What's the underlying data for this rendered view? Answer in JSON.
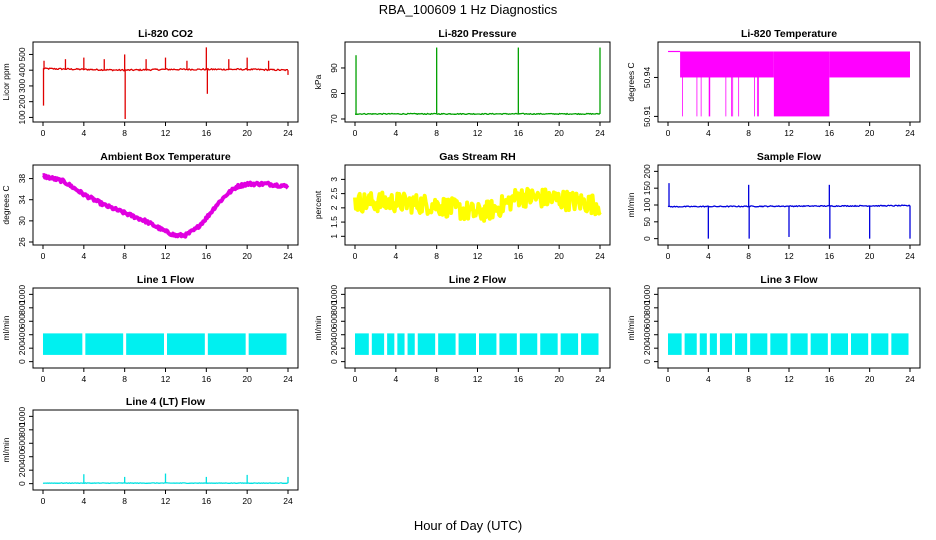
{
  "figure": {
    "title": "RBA_100609  1 Hz Diagnostics",
    "xlabel": "Hour of Day (UTC)"
  },
  "chart_data": [
    {
      "type": "line",
      "title": "Li-820 CO2",
      "ylabel": "Licor ppm",
      "color": "#e00000",
      "xlim": [
        0,
        24
      ],
      "xticks": [
        0,
        4,
        8,
        12,
        16,
        20,
        24
      ],
      "ylim": [
        90,
        560
      ],
      "yticks": [
        100,
        200,
        300,
        400,
        500
      ],
      "baseline": [
        [
          0,
          410
        ],
        [
          4,
          405
        ],
        [
          8,
          400
        ],
        [
          12,
          405
        ],
        [
          16,
          405
        ],
        [
          20,
          405
        ],
        [
          24,
          400
        ]
      ],
      "noise": 10,
      "spikes": [
        [
          0.05,
          175
        ],
        [
          0.1,
          460
        ],
        [
          2.2,
          470
        ],
        [
          4.0,
          480
        ],
        [
          6.0,
          470
        ],
        [
          8.0,
          500
        ],
        [
          8.05,
          90
        ],
        [
          10.1,
          470
        ],
        [
          12.0,
          480
        ],
        [
          14.1,
          460
        ],
        [
          16.0,
          545
        ],
        [
          16.1,
          250
        ],
        [
          18.2,
          470
        ],
        [
          20.0,
          480
        ],
        [
          22.1,
          460
        ],
        [
          24.0,
          370
        ]
      ]
    },
    {
      "type": "line",
      "title": "Li-820 Pressure",
      "ylabel": "kPa",
      "color": "#00a000",
      "xlim": [
        0,
        24
      ],
      "xticks": [
        0,
        4,
        8,
        12,
        16,
        20,
        24
      ],
      "ylim": [
        70,
        99
      ],
      "yticks": [
        70,
        80,
        90
      ],
      "baseline": [
        [
          0,
          72
        ],
        [
          24,
          72
        ]
      ],
      "noise": 0.4,
      "spikes": [
        [
          0.1,
          95
        ],
        [
          8.0,
          98
        ],
        [
          16.0,
          98
        ],
        [
          24.0,
          98
        ]
      ]
    },
    {
      "type": "step",
      "title": "Li-820 Temperature",
      "ylabel": "degrees C",
      "color": "#ff00ff",
      "xlim": [
        0,
        24
      ],
      "xticks": [
        0,
        4,
        8,
        12,
        16,
        20,
        24
      ],
      "ylim": [
        50.908,
        50.965
      ],
      "yticks": [
        50.91,
        50.94
      ],
      "levels": [
        [
          0,
          50.96
        ],
        [
          1.2,
          50.94
        ],
        [
          10.5,
          50.91
        ],
        [
          16.0,
          50.94
        ],
        [
          24.0,
          50.94
        ]
      ]
    },
    {
      "type": "line",
      "title": "Ambient Box Temperature",
      "ylabel": "degrees C",
      "color": "#e000e0",
      "xlim": [
        0,
        24
      ],
      "xticks": [
        0,
        4,
        8,
        12,
        16,
        20,
        24
      ],
      "ylim": [
        26,
        40
      ],
      "yticks": [
        26,
        30,
        34,
        38
      ],
      "x": [
        0,
        2,
        4,
        6,
        8,
        10,
        12,
        13,
        14,
        15,
        16,
        17,
        18,
        19,
        20,
        22,
        24
      ],
      "y": [
        38.5,
        37.5,
        35,
        33,
        31.5,
        30,
        28,
        27.2,
        27.3,
        28.5,
        30.5,
        33,
        35,
        36.5,
        37,
        37,
        36.5
      ],
      "noise": 0.6
    },
    {
      "type": "line",
      "title": "Gas Stream RH",
      "ylabel": "percent",
      "color": "#ffff00",
      "xlim": [
        0,
        24
      ],
      "xticks": [
        0,
        4,
        8,
        12,
        16,
        20,
        24
      ],
      "ylim": [
        0.8,
        3.4
      ],
      "yticks": [
        1.0,
        1.5,
        2.0,
        2.5,
        3.0
      ],
      "x": [
        0,
        4,
        8,
        12,
        14,
        16,
        20,
        24
      ],
      "y": [
        2.2,
        2.2,
        2.1,
        1.8,
        2.0,
        2.4,
        2.3,
        2.1
      ],
      "noise": 0.7
    },
    {
      "type": "line",
      "title": "Sample Flow",
      "ylabel": "ml/min",
      "color": "#0000dd",
      "xlim": [
        0,
        24
      ],
      "xticks": [
        0,
        4,
        8,
        12,
        16,
        20,
        24
      ],
      "ylim": [
        -10,
        210
      ],
      "yticks": [
        0,
        50,
        100,
        150,
        200
      ],
      "baseline": [
        [
          0,
          95
        ],
        [
          24,
          98
        ]
      ],
      "noise": 3,
      "spikes": [
        [
          0.1,
          165
        ],
        [
          4.0,
          0
        ],
        [
          8.0,
          160
        ],
        [
          8.05,
          0
        ],
        [
          12.0,
          5
        ],
        [
          16.0,
          160
        ],
        [
          16.05,
          0
        ],
        [
          20.0,
          0
        ],
        [
          24.0,
          0
        ]
      ]
    },
    {
      "type": "band",
      "title": "Line 1 Flow",
      "ylabel": "ml/min",
      "color": "#00f0f0",
      "xlim": [
        0,
        24
      ],
      "xticks": [
        0,
        4,
        8,
        12,
        16,
        20,
        24
      ],
      "ylim": [
        -50,
        1050
      ],
      "yticks": [
        0,
        200,
        400,
        600,
        800,
        1000
      ],
      "band": [
        100,
        420
      ],
      "gaps": [
        4.0,
        8.0,
        12.0,
        16.0,
        20.0
      ]
    },
    {
      "type": "band",
      "title": "Line 2 Flow",
      "ylabel": "ml/min",
      "color": "#00f0f0",
      "xlim": [
        0,
        24
      ],
      "xticks": [
        0,
        4,
        8,
        12,
        16,
        20,
        24
      ],
      "ylim": [
        -50,
        1050
      ],
      "yticks": [
        0,
        200,
        400,
        600,
        800,
        1000
      ],
      "band": [
        100,
        420
      ],
      "gaps": [
        1.5,
        3.0,
        4.0,
        5.0,
        6.0,
        8.0,
        10.0,
        12.0,
        14.0,
        16.0,
        18.0,
        20.0,
        22.0
      ]
    },
    {
      "type": "band",
      "title": "Line 3 Flow",
      "ylabel": "ml/min",
      "color": "#00f0f0",
      "xlim": [
        0,
        24
      ],
      "xticks": [
        0,
        4,
        8,
        12,
        16,
        20,
        24
      ],
      "ylim": [
        -50,
        1050
      ],
      "yticks": [
        0,
        200,
        400,
        600,
        800,
        1000
      ],
      "band": [
        100,
        420
      ],
      "gaps": [
        1.5,
        3.0,
        4.0,
        5.0,
        6.5,
        8.0,
        10.0,
        12.0,
        14.0,
        16.0,
        18.0,
        20.0,
        22.0
      ]
    },
    {
      "type": "line",
      "title": "Line 4 (LT) Flow",
      "ylabel": "ml/min",
      "color": "#00e0e0",
      "xlim": [
        0,
        24
      ],
      "xticks": [
        0,
        4,
        8,
        12,
        16,
        20,
        24
      ],
      "ylim": [
        -50,
        1050
      ],
      "yticks": [
        0,
        200,
        400,
        600,
        800,
        1000
      ],
      "baseline": [
        [
          0,
          8
        ],
        [
          24,
          8
        ]
      ],
      "noise": 8,
      "spikes": [
        [
          4.0,
          140
        ],
        [
          8.0,
          100
        ],
        [
          12.0,
          150
        ],
        [
          16.0,
          100
        ],
        [
          20.0,
          130
        ],
        [
          24.0,
          100
        ]
      ]
    }
  ]
}
